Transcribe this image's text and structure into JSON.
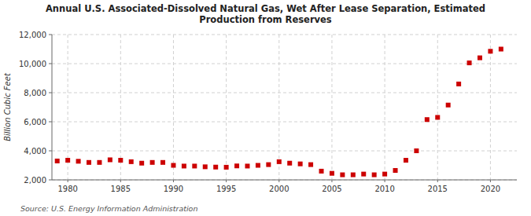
{
  "chart_data": {
    "type": "scatter",
    "title": "Annual U.S. Associated-Dissolved Natural Gas, Wet After Lease Separation, Estimated\nProduction from Reserves",
    "ylabel": "Billion Cubic Feet",
    "source": "Source: U.S. Energy Information Administration",
    "color": "#cc0000",
    "marker": "square",
    "grid": true,
    "xlim": [
      1978.5,
      2022.5
    ],
    "xticks": [
      1980,
      1985,
      1990,
      1995,
      2000,
      2005,
      2010,
      2015,
      2020
    ],
    "ylim": [
      2000,
      12000
    ],
    "yticks": [
      {
        "value": 2000,
        "label": "2,000"
      },
      {
        "value": 4000,
        "label": "4,000"
      },
      {
        "value": 6000,
        "label": "6,000"
      },
      {
        "value": 8000,
        "label": "8,000"
      },
      {
        "value": 10000,
        "label": "10,000"
      },
      {
        "value": 12000,
        "label": "12,000"
      }
    ],
    "x": [
      1979,
      1980,
      1981,
      1982,
      1983,
      1984,
      1985,
      1986,
      1987,
      1988,
      1989,
      1990,
      1991,
      1992,
      1993,
      1994,
      1995,
      1996,
      1997,
      1998,
      1999,
      2000,
      2001,
      2002,
      2003,
      2004,
      2005,
      2006,
      2007,
      2008,
      2009,
      2010,
      2011,
      2012,
      2013,
      2014,
      2015,
      2016,
      2017,
      2018,
      2019,
      2020,
      2021
    ],
    "values": [
      3300,
      3350,
      3280,
      3200,
      3200,
      3380,
      3350,
      3250,
      3150,
      3200,
      3200,
      3000,
      2950,
      2950,
      2900,
      2880,
      2870,
      2960,
      2950,
      3000,
      3050,
      3250,
      3150,
      3100,
      3050,
      2600,
      2450,
      2350,
      2350,
      2400,
      2350,
      2400,
      2650,
      3350,
      4000,
      6150,
      6300,
      7150,
      8600,
      10050,
      10400,
      10850,
      11000
    ]
  }
}
